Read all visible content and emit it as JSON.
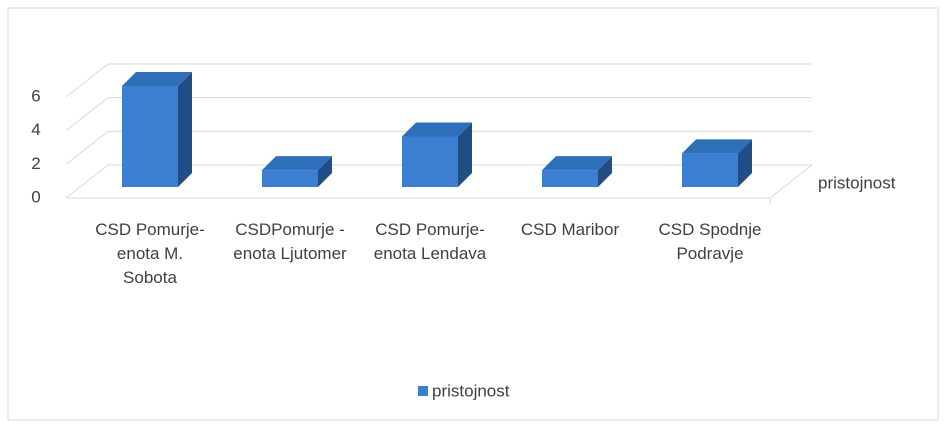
{
  "chart_data": {
    "type": "bar3d",
    "categories": [
      "CSD Pomurje-enota M. Sobota",
      "CSDPomurje - enota Ljutomer",
      "CSD Pomurje-enota Lendava",
      "CSD Maribor",
      "CSD Spodnje Podravje"
    ],
    "series": [
      {
        "name": "pristojnost",
        "color": "#3a7fd0",
        "values": [
          6,
          1,
          3,
          1,
          2
        ]
      }
    ],
    "ylim": [
      0,
      6
    ],
    "yticks": [
      0,
      2,
      4,
      6
    ],
    "grid": true,
    "legend": "bottom"
  }
}
